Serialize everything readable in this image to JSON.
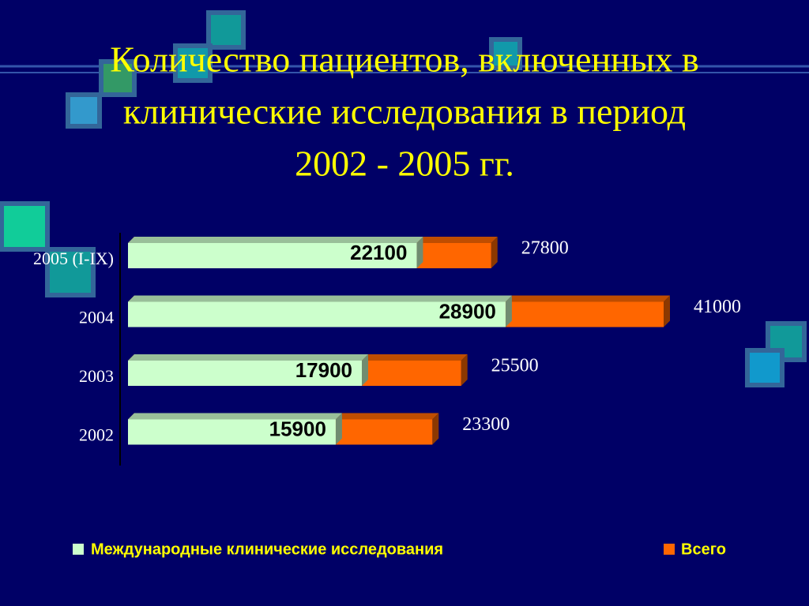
{
  "chart_data": {
    "type": "bar3d-overlap",
    "title": [
      "Количество пациентов, включенных в",
      "клинические исследования в период",
      "2002 - 2005 гг."
    ],
    "categories": [
      "2005 (I-IX)",
      "2004",
      "2003",
      "2002"
    ],
    "series": [
      {
        "name": "Международные клинические исследования",
        "color": "#ccffcc",
        "values": [
          22100,
          28900,
          17900,
          15900
        ]
      },
      {
        "name": "Всего",
        "color": "#ff6600",
        "values": [
          27800,
          41000,
          25500,
          23300
        ]
      }
    ]
  }
}
